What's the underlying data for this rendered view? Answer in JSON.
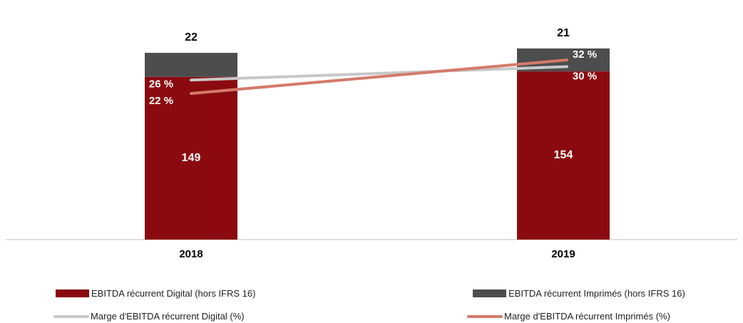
{
  "chart_data": {
    "type": "bar",
    "categories": [
      "2018",
      "2019"
    ],
    "series": [
      {
        "name": "EBITDA récurrent Digital (hors IFRS 16)",
        "kind": "bar",
        "values": [
          149,
          154
        ],
        "labels": [
          "149",
          "154"
        ],
        "color": "#8b0a0f"
      },
      {
        "name": "EBITDA récurrent Imprimés (hors IFRS 16)",
        "kind": "bar",
        "values": [
          22,
          21
        ],
        "labels": [
          "22",
          "21"
        ],
        "color": "#4d4d4d"
      },
      {
        "name": "Marge d'EBITDA récurrent Digital (%)",
        "kind": "line",
        "values": [
          26,
          30
        ],
        "labels": [
          "26 %",
          "30 %"
        ],
        "color": "#c8c8c8"
      },
      {
        "name": "Marge d'EBITDA récurrent Imprimés (%)",
        "kind": "line",
        "values": [
          22,
          32
        ],
        "labels": [
          "22 %",
          "32 %"
        ],
        "color": "#d47a6a"
      }
    ],
    "grid": false,
    "legend_position": "bottom"
  },
  "legend": [
    {
      "label": "EBITDA récurrent Digital (hors IFRS 16)",
      "type": "box",
      "color": "#8b0a0f"
    },
    {
      "label": "EBITDA récurrent Imprimés (hors IFRS 16)",
      "type": "box",
      "color": "#4d4d4d"
    },
    {
      "label": "Marge d'EBITDA récurrent Digital (%)",
      "type": "line",
      "color": "#c8c8c8"
    },
    {
      "label": "Marge d'EBITDA récurrent Imprimés (%)",
      "type": "line",
      "color": "#d47a6a"
    }
  ]
}
